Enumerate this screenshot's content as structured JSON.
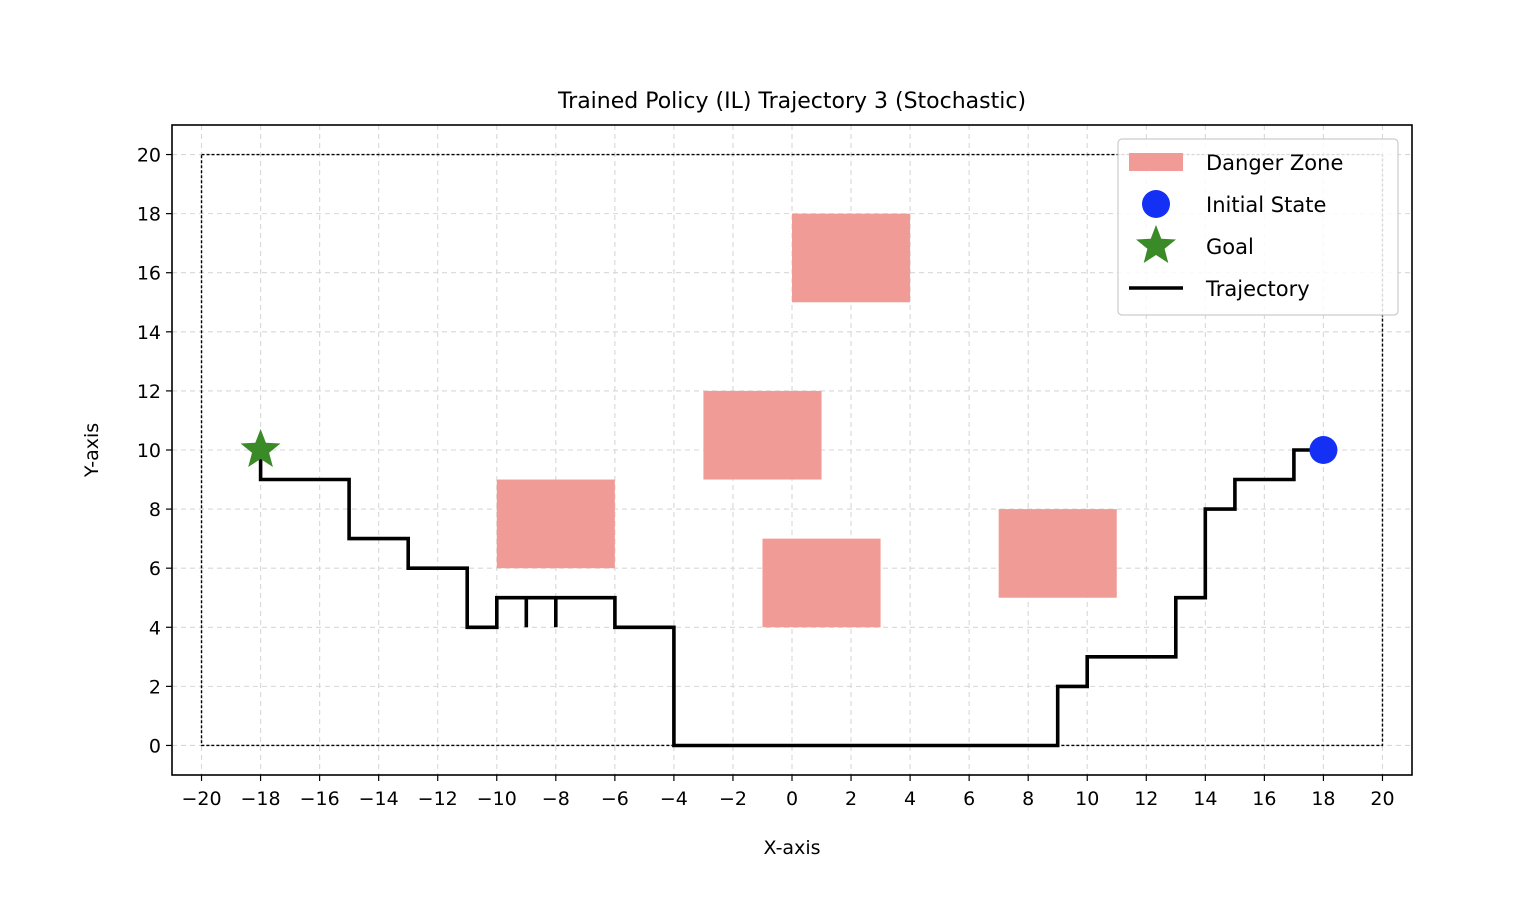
{
  "chart_data": {
    "type": "line",
    "title": "Trained Policy (IL) Trajectory 3 (Stochastic)",
    "xlabel": "X-axis",
    "ylabel": "Y-axis",
    "xlim": [
      -21,
      21
    ],
    "ylim": [
      -1,
      21
    ],
    "xticks": [
      -20,
      -18,
      -16,
      -14,
      -12,
      -10,
      -8,
      -6,
      -4,
      -2,
      0,
      2,
      4,
      6,
      8,
      10,
      12,
      14,
      16,
      18,
      20
    ],
    "xtick_labels": [
      "−20",
      "−18",
      "−16",
      "−14",
      "−12",
      "−10",
      "−8",
      "−6",
      "−4",
      "−2",
      "0",
      "2",
      "4",
      "6",
      "8",
      "10",
      "12",
      "14",
      "16",
      "18",
      "20"
    ],
    "yticks": [
      0,
      2,
      4,
      6,
      8,
      10,
      12,
      14,
      16,
      18,
      20
    ],
    "ytick_labels": [
      "0",
      "2",
      "4",
      "6",
      "8",
      "10",
      "12",
      "14",
      "16",
      "18",
      "20"
    ],
    "grid": true,
    "legend_position": "upper right",
    "boundary": {
      "x": [
        -20,
        20
      ],
      "y": [
        0,
        20
      ]
    },
    "danger_zones": [
      {
        "x": 0,
        "y": 15,
        "width": 4,
        "height": 3
      },
      {
        "x": -3,
        "y": 9,
        "width": 4,
        "height": 3
      },
      {
        "x": -10,
        "y": 6,
        "width": 4,
        "height": 3
      },
      {
        "x": -1,
        "y": 4,
        "width": 4,
        "height": 3
      },
      {
        "x": 7,
        "y": 5,
        "width": 4,
        "height": 3
      }
    ],
    "initial_state": {
      "x": 18,
      "y": 10
    },
    "goal": {
      "x": -18,
      "y": 10
    },
    "trajectory": [
      [
        18,
        10
      ],
      [
        17,
        10
      ],
      [
        17,
        9
      ],
      [
        16,
        9
      ],
      [
        15,
        9
      ],
      [
        15,
        8
      ],
      [
        14,
        8
      ],
      [
        14,
        7
      ],
      [
        14,
        6
      ],
      [
        14,
        5
      ],
      [
        13,
        5
      ],
      [
        13,
        4
      ],
      [
        13,
        3
      ],
      [
        12,
        3
      ],
      [
        11,
        3
      ],
      [
        10,
        3
      ],
      [
        10,
        2
      ],
      [
        9,
        2
      ],
      [
        9,
        1
      ],
      [
        9,
        0
      ],
      [
        8,
        0
      ],
      [
        7,
        0
      ],
      [
        6,
        0
      ],
      [
        5,
        0
      ],
      [
        4,
        0
      ],
      [
        3,
        0
      ],
      [
        2,
        0
      ],
      [
        1,
        0
      ],
      [
        0,
        0
      ],
      [
        -1,
        0
      ],
      [
        -2,
        0
      ],
      [
        -3,
        0
      ],
      [
        -4,
        0
      ],
      [
        -4,
        1
      ],
      [
        -4,
        2
      ],
      [
        -4,
        3
      ],
      [
        -4,
        4
      ],
      [
        -5,
        4
      ],
      [
        -6,
        4
      ],
      [
        -6,
        5
      ],
      [
        -7,
        5
      ],
      [
        -8,
        5
      ],
      [
        -8,
        4
      ],
      [
        -8,
        5
      ],
      [
        -9,
        5
      ],
      [
        -9,
        4
      ],
      [
        -9,
        5
      ],
      [
        -10,
        5
      ],
      [
        -10,
        4
      ],
      [
        -11,
        4
      ],
      [
        -11,
        5
      ],
      [
        -11,
        6
      ],
      [
        -12,
        6
      ],
      [
        -13,
        6
      ],
      [
        -13,
        7
      ],
      [
        -14,
        7
      ],
      [
        -15,
        7
      ],
      [
        -15,
        8
      ],
      [
        -15,
        9
      ],
      [
        -16,
        9
      ],
      [
        -17,
        9
      ],
      [
        -18,
        9
      ],
      [
        -18,
        10
      ]
    ],
    "legend": [
      {
        "label": "Danger Zone",
        "kind": "patch",
        "color": "#f19b96"
      },
      {
        "label": "Initial State",
        "kind": "circle",
        "color": "#1430f5"
      },
      {
        "label": "Goal",
        "kind": "star",
        "color": "#3a8a28"
      },
      {
        "label": "Trajectory",
        "kind": "line",
        "color": "#000000"
      }
    ],
    "colors": {
      "danger": "#f19b96",
      "initial": "#1430f5",
      "goal": "#3a8a28",
      "trajectory": "#000000",
      "grid": "#d7d7d7",
      "boundary": "#000000"
    }
  }
}
